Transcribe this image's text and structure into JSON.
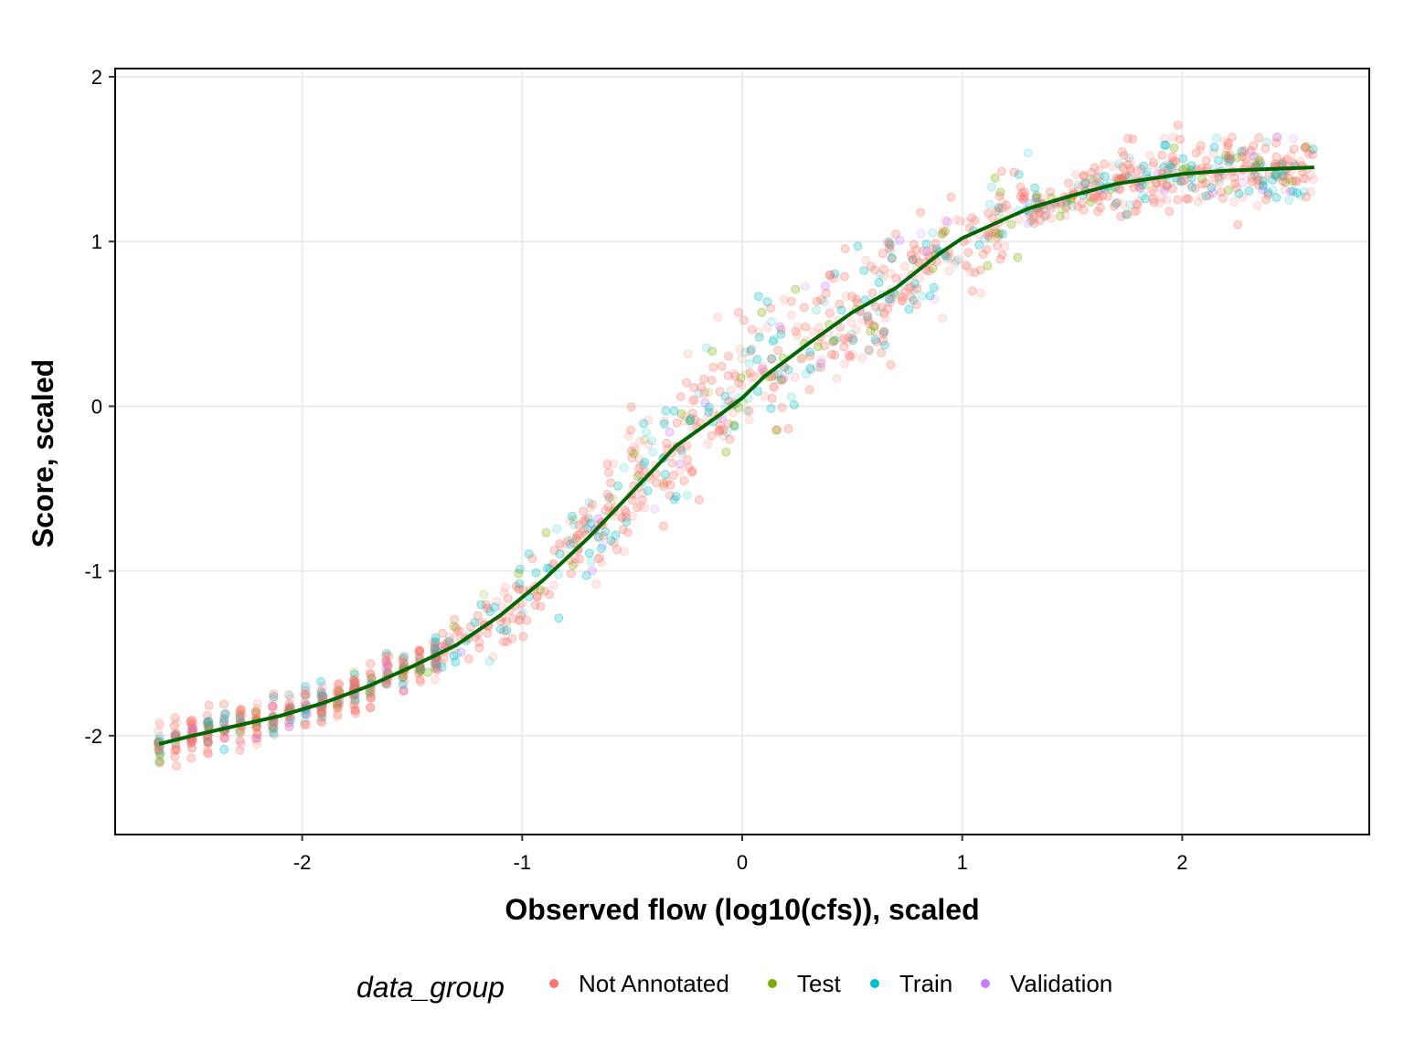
{
  "chart_data": {
    "type": "scatter",
    "title": "",
    "xlabel": "Observed flow (log10(cfs)), scaled",
    "ylabel": "Score, scaled",
    "xlim": [
      -2.85,
      2.85
    ],
    "ylim": [
      -2.6,
      2.05
    ],
    "x_ticks": [
      -2,
      -1,
      0,
      1,
      2
    ],
    "y_ticks": [
      -2,
      -1,
      0,
      1,
      2
    ],
    "x_tick_labels": [
      "-2",
      "-1",
      "0",
      "1",
      "2"
    ],
    "y_tick_labels": [
      "-2",
      "-1",
      "0",
      "1",
      "2"
    ],
    "grid": true,
    "legend": {
      "title": "data_group",
      "placement": "bottom",
      "entries": [
        {
          "name": "Not Annotated",
          "color": "#F8766D"
        },
        {
          "name": "Test",
          "color": "#7CAE00"
        },
        {
          "name": "Train",
          "color": "#00BFC4"
        },
        {
          "name": "Validation",
          "color": "#C77CFF"
        }
      ]
    },
    "series": [
      {
        "name": "Not Annotated",
        "color": "#F8766D"
      },
      {
        "name": "Test",
        "color": "#7CAE00"
      },
      {
        "name": "Train",
        "color": "#00BFC4"
      },
      {
        "name": "Validation",
        "color": "#C77CFF"
      }
    ],
    "point_alpha": 0.15,
    "trend_line": {
      "name": "smoothed fit",
      "color": "#006400",
      "x": [
        -2.65,
        -2.5,
        -2.3,
        -2.1,
        -1.9,
        -1.7,
        -1.5,
        -1.3,
        -1.1,
        -0.9,
        -0.7,
        -0.5,
        -0.3,
        -0.1,
        0.0,
        0.1,
        0.3,
        0.5,
        0.7,
        0.9,
        1.0,
        1.1,
        1.3,
        1.5,
        1.7,
        1.9,
        2.0,
        2.2,
        2.4,
        2.6
      ],
      "y": [
        -2.05,
        -2.0,
        -1.94,
        -1.88,
        -1.8,
        -1.7,
        -1.58,
        -1.45,
        -1.27,
        -1.05,
        -0.8,
        -0.52,
        -0.24,
        -0.05,
        0.05,
        0.18,
        0.38,
        0.57,
        0.72,
        0.93,
        1.02,
        1.08,
        1.2,
        1.28,
        1.35,
        1.39,
        1.41,
        1.43,
        1.44,
        1.45
      ]
    }
  }
}
